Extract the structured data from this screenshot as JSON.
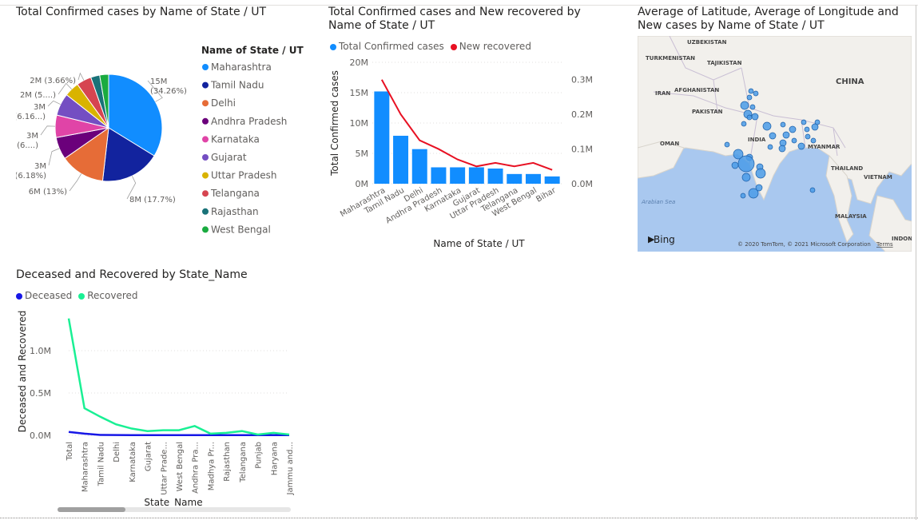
{
  "chart_data": [
    {
      "id": "pie",
      "type": "pie",
      "title": "Total Confirmed cases by Name of State / UT",
      "legend_title": "Name of State / UT",
      "legend_position": "right",
      "slices": [
        {
          "name": "Maharashtra",
          "value": 15,
          "label": "15M\n(34.26%)",
          "color": "#118dff"
        },
        {
          "name": "Tamil Nadu",
          "value": 8,
          "label": "8M (17.7%)",
          "color": "#12239e"
        },
        {
          "name": "Delhi",
          "value": 6,
          "label": "6M (13%)",
          "color": "#e66c37"
        },
        {
          "name": "Andhra Pradesh",
          "value": 3,
          "label": "3M\n(6.18%)",
          "color": "#6b007b"
        },
        {
          "name": "Karnataka",
          "value": 3,
          "label": "3M\n(6....)",
          "color": "#e044a7"
        },
        {
          "name": "Gujarat",
          "value": 3,
          "label": "3M\n(6.16...)",
          "color": "#744ec2"
        },
        {
          "name": "Uttar Pradesh",
          "value": 2,
          "label": "2M (5....)",
          "color": "#d9b300"
        },
        {
          "name": "Telangana",
          "value": 2,
          "label": "2M (3.66%)",
          "color": "#d64550"
        },
        {
          "name": "Rajasthan",
          "value": 1.2,
          "label": "",
          "color": "#197278"
        },
        {
          "name": "West Bengal",
          "value": 1.2,
          "label": "",
          "color": "#1aab40"
        }
      ]
    },
    {
      "id": "combo",
      "type": "bar",
      "title": "Total Confirmed cases and New recovered by Name of State / UT",
      "xlabel": "Name of State / UT",
      "ylabel": "Total Confirmed cases",
      "categories": [
        "Maharashtra",
        "Tamil Nadu",
        "Delhi",
        "Andhra Pradesh",
        "Karnataka",
        "Gujarat",
        "Uttar Pradesh",
        "Telangana",
        "West Bengal",
        "Bihar"
      ],
      "series": [
        {
          "name": "Total Confirmed cases",
          "type": "bar",
          "axis": "left",
          "color": "#118dff",
          "values": [
            15.2,
            7.9,
            5.7,
            2.7,
            2.7,
            2.7,
            2.5,
            1.6,
            1.6,
            1.2
          ]
        },
        {
          "name": "New recovered",
          "type": "line",
          "axis": "right",
          "color": "#e81123",
          "values": [
            0.3,
            0.2,
            0.125,
            0.1,
            0.07,
            0.05,
            0.06,
            0.05,
            0.06,
            0.04
          ]
        }
      ],
      "ylim_left": [
        0,
        20
      ],
      "yticks_left": [
        "0M",
        "5M",
        "10M",
        "15M",
        "20M"
      ],
      "ylim_right": [
        0,
        0.35
      ],
      "yticks_right": [
        "0.0M",
        "0.1M",
        "0.2M",
        "0.3M"
      ],
      "legend_position": "top-left"
    },
    {
      "id": "line",
      "type": "line",
      "title": "Deceased and Recovered by State_Name",
      "xlabel": "State_Name",
      "ylabel": "Deceased and Recovered",
      "categories": [
        "Total",
        "Maharashtra",
        "Tamil Nadu",
        "Delhi",
        "Karnataka",
        "Gujarat",
        "Uttar Prade...",
        "West Bengal",
        "Andhra Pra...",
        "Madhya Pr...",
        "Rajasthan",
        "Telangana",
        "Punjab",
        "Haryana",
        "Jammu and..."
      ],
      "series": [
        {
          "name": "Deceased",
          "color": "#1717e6",
          "values": [
            0.04,
            0.02,
            0.005,
            0.003,
            0.002,
            0.002,
            0.002,
            0.002,
            0.002,
            0.002,
            0.002,
            0.002,
            0.002,
            0.002,
            0.002
          ]
        },
        {
          "name": "Recovered",
          "color": "#19f094",
          "values": [
            1.38,
            0.32,
            0.22,
            0.13,
            0.08,
            0.05,
            0.06,
            0.06,
            0.11,
            0.02,
            0.03,
            0.05,
            0.01,
            0.03,
            0.01
          ]
        }
      ],
      "ylim": [
        0,
        1.5
      ],
      "yticks": [
        "0.0M",
        "0.5M",
        "1.0M"
      ],
      "legend_position": "top-left"
    }
  ],
  "map": {
    "title": "Average of Latitude, Average of Longitude and New cases by Name of State / UT",
    "labels": [
      "UZBEKISTAN",
      "TURKMENISTAN",
      "TAJIKISTAN",
      "CHINA",
      "IRAN",
      "AFGHANISTAN",
      "PAKISTAN",
      "INDIA",
      "OMAN",
      "MYANMAR",
      "THAILAND",
      "VIETNAM",
      "MALAYSIA",
      "Arabian Sea",
      "INDON"
    ],
    "brand": "Bing",
    "attribution": "© 2020 TomTom, © 2021 Microsoft Corporation",
    "terms": "Terms",
    "land_color": "#f2f0ec",
    "water_color": "#a9c8ef",
    "bubble_color": "#4a9be8"
  }
}
